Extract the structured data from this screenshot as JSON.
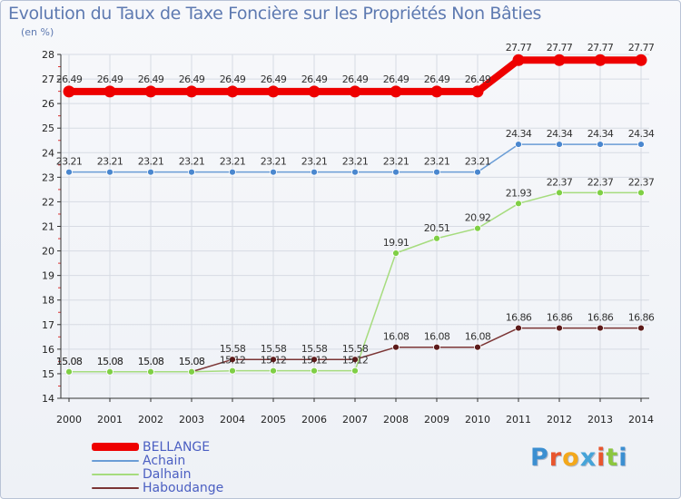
{
  "chart_data": {
    "type": "line",
    "title": "Evolution du Taux de Taxe Foncière sur les Propriétés Non Bâties",
    "unit_label": "(en %)",
    "x": [
      "2000",
      "2001",
      "2002",
      "2003",
      "2004",
      "2005",
      "2006",
      "2007",
      "2008",
      "2009",
      "2010",
      "2011",
      "2012",
      "2013",
      "2014"
    ],
    "ylim": [
      14,
      28
    ],
    "yticks": [
      14,
      15,
      16,
      17,
      18,
      19,
      20,
      21,
      22,
      23,
      24,
      25,
      26,
      27,
      28
    ],
    "series": [
      {
        "name": "BELLANGE",
        "color": "#ee0000",
        "width": 8,
        "dot": 6.5,
        "values": [
          26.49,
          26.49,
          26.49,
          26.49,
          26.49,
          26.49,
          26.49,
          26.49,
          26.49,
          26.49,
          26.49,
          27.77,
          27.77,
          27.77,
          27.77
        ],
        "labels": [
          "26.49",
          "26.49",
          "26.49",
          "26.49",
          "26.49",
          "26.49",
          "26.49",
          "26.49",
          "26.49",
          "26.49",
          "26.49",
          "27.77",
          "27.77",
          "27.77",
          "27.77"
        ]
      },
      {
        "name": "Achain",
        "color": "#6a9dd6",
        "dotColor": "#4a87cf",
        "width": 1.5,
        "dot": 3.5,
        "values": [
          23.21,
          23.21,
          23.21,
          23.21,
          23.21,
          23.21,
          23.21,
          23.21,
          23.21,
          23.21,
          23.21,
          24.34,
          24.34,
          24.34,
          24.34
        ],
        "labels": [
          "23.21",
          "23.21",
          "23.21",
          "23.21",
          "23.21",
          "23.21",
          "23.21",
          "23.21",
          "23.21",
          "23.21",
          "23.21",
          "24.34",
          "24.34",
          "24.34",
          "24.34"
        ]
      },
      {
        "name": "Dalhain",
        "color": "#a6dc7e",
        "dotColor": "#7fcf45",
        "width": 1.5,
        "dot": 3.5,
        "values": [
          15.08,
          15.08,
          15.08,
          15.08,
          15.12,
          15.12,
          15.12,
          15.12,
          19.91,
          20.51,
          20.92,
          21.93,
          22.37,
          22.37,
          22.37
        ],
        "labels": [
          "15.08",
          "15.08",
          "15.08",
          "15.08",
          "15.12",
          "15.12",
          "15.12",
          "15.12",
          "19.91",
          "20.51",
          "20.92",
          "21.93",
          "22.37",
          "22.37",
          "22.37"
        ]
      },
      {
        "name": "Haboudange",
        "color": "#7b3535",
        "dotColor": "#5c1a1a",
        "width": 1.5,
        "dot": 3.5,
        "values": [
          15.08,
          15.08,
          15.08,
          15.08,
          15.58,
          15.58,
          15.58,
          15.58,
          16.08,
          16.08,
          16.08,
          16.86,
          16.86,
          16.86,
          16.86
        ],
        "labels": [
          "15.08",
          "15.08",
          "15.08",
          "15.08",
          "15.58",
          "15.58",
          "15.58",
          "15.58",
          "16.08",
          "16.08",
          "16.08",
          "16.86",
          "16.86",
          "16.86",
          "16.86"
        ]
      }
    ]
  },
  "brand": {
    "letters": [
      "P",
      "r",
      "o",
      "x",
      "i",
      "t",
      "i"
    ],
    "colors": [
      "#3b8fd1",
      "#e8562e",
      "#f3a81b",
      "#46a4d8",
      "#e8562e",
      "#8cc63f",
      "#3b8fd1"
    ]
  }
}
